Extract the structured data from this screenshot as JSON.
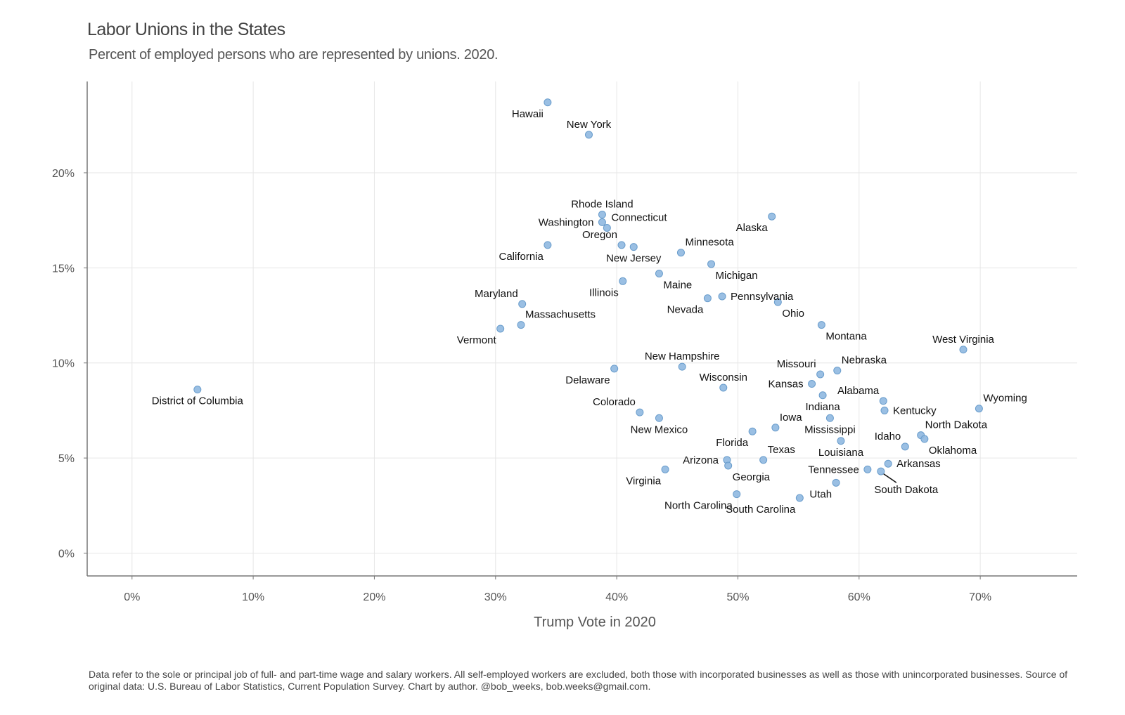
{
  "title": "Labor Unions in the States",
  "subtitle": "Percent of employed persons who are represented by unions. 2020.",
  "caption": "Data refer to the sole or principal job of full- and part-time wage and salary workers. All self-employed workers are excluded, both those with incorporated businesses as well as those with unincorporated businesses. Source of original data: U.S. Bureau of Labor Statistics, Current Population Survey. Chart by author. @bob_weeks, bob.weeks@gmail.com.",
  "colors": {
    "point_fill": "#8fb8e0",
    "point_stroke": "#6a9dcc",
    "grid": "#e6e6e6",
    "axis": "#777777"
  },
  "chart_data": {
    "type": "scatter",
    "title": "Labor Unions in the States",
    "subtitle": "Percent of employed persons who are represented by unions. 2020.",
    "xlabel": "Trump Vote in 2020",
    "ylabel": "",
    "xlim": [
      -3.7,
      78
    ],
    "ylim": [
      -1.2,
      24.8
    ],
    "x_ticks": [
      0,
      10,
      20,
      30,
      40,
      50,
      60,
      70
    ],
    "x_tick_labels": [
      "0%",
      "10%",
      "20%",
      "30%",
      "40%",
      "50%",
      "60%",
      "70%"
    ],
    "y_ticks": [
      0,
      5,
      10,
      15,
      20
    ],
    "y_tick_labels": [
      "0%",
      "5%",
      "10%",
      "15%",
      "20%"
    ],
    "grid": true,
    "legend": "none",
    "points": [
      {
        "label": "Hawaii",
        "x": 34.3,
        "y": 23.7,
        "anchor": "bl"
      },
      {
        "label": "New York",
        "x": 37.7,
        "y": 22.0,
        "anchor": "a"
      },
      {
        "label": "Rhode Island",
        "x": 38.8,
        "y": 17.8,
        "anchor": "a"
      },
      {
        "label": "Washington",
        "x": 38.8,
        "y": 17.4,
        "anchor": "l"
      },
      {
        "label": "Connecticut",
        "x": 39.2,
        "y": 17.1,
        "anchor": "ar"
      },
      {
        "label": "Alaska",
        "x": 52.8,
        "y": 17.7,
        "anchor": "bl"
      },
      {
        "label": "California",
        "x": 34.3,
        "y": 16.2,
        "anchor": "bl"
      },
      {
        "label": "Oregon",
        "x": 40.4,
        "y": 16.2,
        "anchor": "al"
      },
      {
        "label": "Minnesota",
        "x": 45.3,
        "y": 15.8,
        "anchor": "ar"
      },
      {
        "label": "New Jersey",
        "x": 41.4,
        "y": 16.1,
        "anchor": "b"
      },
      {
        "label": "Michigan",
        "x": 47.8,
        "y": 15.2,
        "anchor": "br"
      },
      {
        "label": "Maine",
        "x": 43.5,
        "y": 14.7,
        "anchor": "br"
      },
      {
        "label": "Illinois",
        "x": 40.5,
        "y": 14.3,
        "anchor": "bl"
      },
      {
        "label": "Pennsylvania",
        "x": 48.7,
        "y": 13.5,
        "anchor": "r"
      },
      {
        "label": "Nevada",
        "x": 47.5,
        "y": 13.4,
        "anchor": "bl"
      },
      {
        "label": "Ohio",
        "x": 53.3,
        "y": 13.2,
        "anchor": "br"
      },
      {
        "label": "Maryland",
        "x": 32.2,
        "y": 13.1,
        "anchor": "al"
      },
      {
        "label": "Massachusetts",
        "x": 32.1,
        "y": 12.0,
        "anchor": "ar"
      },
      {
        "label": "Vermont",
        "x": 30.4,
        "y": 11.8,
        "anchor": "bl"
      },
      {
        "label": "Montana",
        "x": 56.9,
        "y": 12.0,
        "anchor": "br"
      },
      {
        "label": "West Virginia",
        "x": 68.6,
        "y": 10.7,
        "anchor": "a"
      },
      {
        "label": "New Hampshire",
        "x": 45.4,
        "y": 9.8,
        "anchor": "a"
      },
      {
        "label": "Delaware",
        "x": 39.8,
        "y": 9.7,
        "anchor": "bl"
      },
      {
        "label": "Nebraska",
        "x": 58.2,
        "y": 9.6,
        "anchor": "ar"
      },
      {
        "label": "Missouri",
        "x": 56.8,
        "y": 9.4,
        "anchor": "al"
      },
      {
        "label": "Kansas",
        "x": 56.1,
        "y": 8.9,
        "anchor": "l"
      },
      {
        "label": "Wisconsin",
        "x": 48.8,
        "y": 8.7,
        "anchor": "a"
      },
      {
        "label": "District of Columbia",
        "x": 5.4,
        "y": 8.6,
        "anchor": "b"
      },
      {
        "label": "Indiana",
        "x": 57.0,
        "y": 8.3,
        "anchor": "b"
      },
      {
        "label": "Alabama",
        "x": 62.0,
        "y": 8.0,
        "anchor": "al"
      },
      {
        "label": "Kentucky",
        "x": 62.1,
        "y": 7.5,
        "anchor": "r"
      },
      {
        "label": "Wyoming",
        "x": 69.9,
        "y": 7.6,
        "anchor": "ar"
      },
      {
        "label": "Colorado",
        "x": 41.9,
        "y": 7.4,
        "anchor": "al"
      },
      {
        "label": "New Mexico",
        "x": 43.5,
        "y": 7.1,
        "anchor": "b"
      },
      {
        "label": "Mississippi",
        "x": 57.6,
        "y": 7.1,
        "anchor": "b"
      },
      {
        "label": "Iowa",
        "x": 53.1,
        "y": 6.6,
        "anchor": "ar"
      },
      {
        "label": "North Dakota",
        "x": 65.1,
        "y": 6.2,
        "anchor": "ar"
      },
      {
        "label": "Oklahoma",
        "x": 65.4,
        "y": 6.0,
        "anchor": "br"
      },
      {
        "label": "Idaho",
        "x": 63.8,
        "y": 5.6,
        "anchor": "al"
      },
      {
        "label": "Louisiana",
        "x": 58.5,
        "y": 5.9,
        "anchor": "b"
      },
      {
        "label": "Florida",
        "x": 51.2,
        "y": 6.4,
        "anchor": "bl"
      },
      {
        "label": "Texas",
        "x": 52.1,
        "y": 4.9,
        "anchor": "ar"
      },
      {
        "label": "Arkansas",
        "x": 62.4,
        "y": 4.7,
        "anchor": "r"
      },
      {
        "label": "Arizona",
        "x": 49.1,
        "y": 4.9,
        "anchor": "l"
      },
      {
        "label": "Georgia",
        "x": 49.2,
        "y": 4.6,
        "anchor": "br"
      },
      {
        "label": "Tennessee",
        "x": 60.7,
        "y": 4.4,
        "anchor": "l"
      },
      {
        "label": "Virginia",
        "x": 44.0,
        "y": 4.4,
        "anchor": "bl"
      },
      {
        "label": "South Dakota",
        "x": 61.8,
        "y": 4.3,
        "anchor": "bfar"
      },
      {
        "label": "Utah",
        "x": 58.1,
        "y": 3.7,
        "anchor": "bl"
      },
      {
        "label": "North Carolina",
        "x": 49.9,
        "y": 3.1,
        "anchor": "bl"
      },
      {
        "label": "South Carolina",
        "x": 55.1,
        "y": 2.9,
        "anchor": "bl"
      }
    ]
  }
}
